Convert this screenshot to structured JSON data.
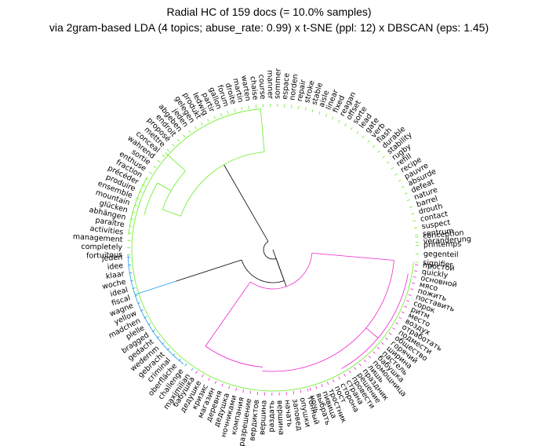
{
  "title": {
    "line1": "Radial HC of 159 docs (= 10.0% samples)",
    "line2": "via 2gram-based LDA (4 topics; abuse_rate: 0.99) x t-SNE (ppl: 12) x DBSCAN (eps: 1.45)"
  },
  "colors": {
    "green_cluster": "#66ee22",
    "pink_cluster": "#ee22cc",
    "blue_cluster": "#2299ee",
    "root_links": "#000000",
    "text": "#000000"
  },
  "leaf_labels": {
    "green": [
      "fortuitous",
      "completely",
      "management",
      "activities",
      "paraître",
      "abhängen",
      "glücken",
      "mountain",
      "ensemble",
      "produire",
      "précéder",
      "fraction",
      "enthuse",
      "sortie",
      "wahrend",
      "conceal",
      "mettre",
      "proposé",
      "endroit",
      "abgeben",
      "jeden",
      "gelegen",
      "produkt",
      "ledwig",
      "partir",
      "gallon",
      "forum",
      "droite",
      "martin",
      "warten",
      "chaise",
      "course",
      "manner",
      "sommer",
      "espace",
      "norden",
      "repair",
      "stroke",
      "stable",
      "aisle",
      "linear",
      "fixed",
      "reagan",
      "offset",
      "sorte",
      "lead",
      "gate",
      "verb",
      "flash",
      "durable",
      "stability",
      "rugby",
      "refill",
      "recipe",
      "pauvre",
      "absurde",
      "defeat",
      "nature",
      "barrel",
      "drouth",
      "contact",
      "suspect",
      "sentrum",
      "veranderung"
    ],
    "blue": [
      "maximilian",
      "challenge",
      "oberfläche",
      "criminal",
      "gebracht",
      "wedernm",
      "gedacht",
      "bragged",
      "plelle",
      "madchen",
      "yellow",
      "wagne",
      "fiscal",
      "ideal",
      "woche",
      "klaar",
      "idee",
      "jeden"
    ],
    "pink_left": [
      "тонный",
      "опушки",
      "заповед",
      "начать",
      "вершина",
      "раздать",
      "вершина",
      "вердиктов",
      "разрешение",
      "компания",
      "ночниками",
      "дедушка",
      "деревня",
      "магазин",
      "кризис",
      "дедушке",
      "бабушка"
    ],
    "pink_right": [
      "простой",
      "quickly",
      "основной",
      "мясо",
      "пожить",
      "поставить",
      "сорок",
      "ритм",
      "место",
      "воздух",
      "отработать",
      "подмести",
      "общество",
      "горячий",
      "ширина",
      "пастель",
      "бабушка",
      "помощница",
      "лишь",
      "праздник",
      "решение",
      "провести",
      "страна",
      "сторона",
      "пост",
      "тростник",
      "пивица",
      "выбрать",
      "ночь"
    ],
    "top_right": [
      "conception",
      "printemps",
      "gegenteil",
      "signifier"
    ]
  }
}
